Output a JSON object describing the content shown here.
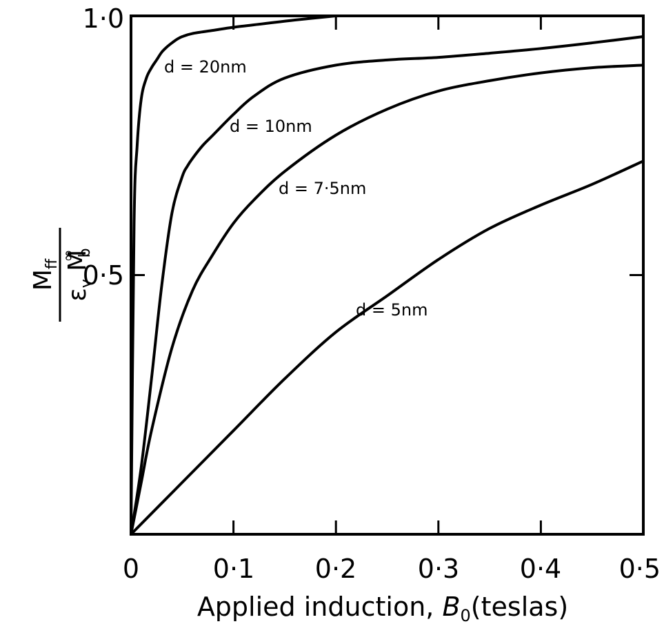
{
  "chart_data": {
    "type": "line",
    "title": "",
    "xlabel": "Applied induction, B0(teslas)",
    "xlabel_parts": {
      "prefix": "Applied induction, ",
      "symbol": "B",
      "subscript": "0",
      "suffix": "(teslas)"
    },
    "ylabel": "Mff / εv Mb∞",
    "ylabel_parts": {
      "numerator_main": "M",
      "numerator_sub": "ff",
      "denominator_eps": "ε",
      "denominator_eps_sub": "v",
      "denominator_m": "M",
      "denominator_m_sub": "b",
      "denominator_m_sup": "∞"
    },
    "xlim": [
      0,
      0.5
    ],
    "ylim": [
      0,
      1.0
    ],
    "grid": false,
    "x_ticks": [
      0,
      0.1,
      0.2,
      0.3,
      0.4,
      0.5
    ],
    "x_tick_labels": [
      "0",
      "0·1",
      "0·2",
      "0·3",
      "0·4",
      "0·5"
    ],
    "y_ticks": [
      0.5,
      1.0
    ],
    "y_tick_labels": [
      "0·5",
      "1·0"
    ],
    "series": [
      {
        "name": "d = 20nm",
        "x": [
          0,
          0.003,
          0.006,
          0.01,
          0.015,
          0.02,
          0.025,
          0.03,
          0.035,
          0.04,
          0.045,
          0.05,
          0.06,
          0.08,
          0.1,
          0.13,
          0.16,
          0.2
        ],
        "y": [
          0,
          0.6,
          0.75,
          0.84,
          0.88,
          0.9,
          0.915,
          0.93,
          0.94,
          0.948,
          0.955,
          0.96,
          0.966,
          0.972,
          0.978,
          0.985,
          0.992,
          1.0
        ]
      },
      {
        "name": "d = 10nm",
        "x": [
          0,
          0.01,
          0.02,
          0.03,
          0.04,
          0.05,
          0.055,
          0.06,
          0.07,
          0.08,
          0.1,
          0.12,
          0.15,
          0.2,
          0.25,
          0.3,
          0.35,
          0.4,
          0.45,
          0.5
        ],
        "y": [
          0,
          0.13,
          0.3,
          0.48,
          0.62,
          0.69,
          0.71,
          0.725,
          0.75,
          0.77,
          0.81,
          0.845,
          0.88,
          0.905,
          0.915,
          0.92,
          0.928,
          0.937,
          0.948,
          0.96
        ]
      },
      {
        "name": "d = 7·5nm",
        "x": [
          0,
          0.01,
          0.02,
          0.04,
          0.06,
          0.08,
          0.1,
          0.12,
          0.15,
          0.2,
          0.25,
          0.3,
          0.35,
          0.4,
          0.45,
          0.5
        ],
        "y": [
          0,
          0.1,
          0.2,
          0.36,
          0.47,
          0.54,
          0.6,
          0.645,
          0.7,
          0.77,
          0.82,
          0.855,
          0.875,
          0.89,
          0.9,
          0.905
        ]
      },
      {
        "name": "d = 5nm",
        "x": [
          0,
          0.05,
          0.1,
          0.15,
          0.2,
          0.25,
          0.3,
          0.35,
          0.4,
          0.45,
          0.5
        ],
        "y": [
          0,
          0.1,
          0.2,
          0.3,
          0.39,
          0.46,
          0.53,
          0.59,
          0.635,
          0.675,
          0.72
        ]
      }
    ],
    "curve_labels": [
      "d = 20nm",
      "d = 10nm",
      "d = 7·5nm",
      "d = 5nm"
    ]
  }
}
